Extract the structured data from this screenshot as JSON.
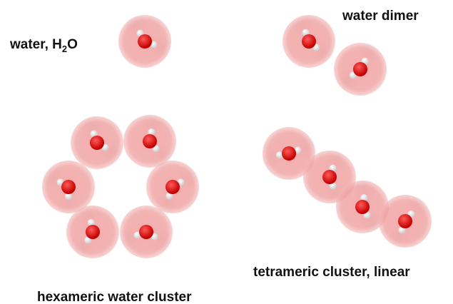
{
  "labels": {
    "water": {
      "text": "water, H",
      "subscript": "2",
      "suffix": "O"
    },
    "dimer": "water dimer",
    "hexamer": "hexameric water cluster",
    "tetramer": "tetrameric cluster, linear"
  }
}
